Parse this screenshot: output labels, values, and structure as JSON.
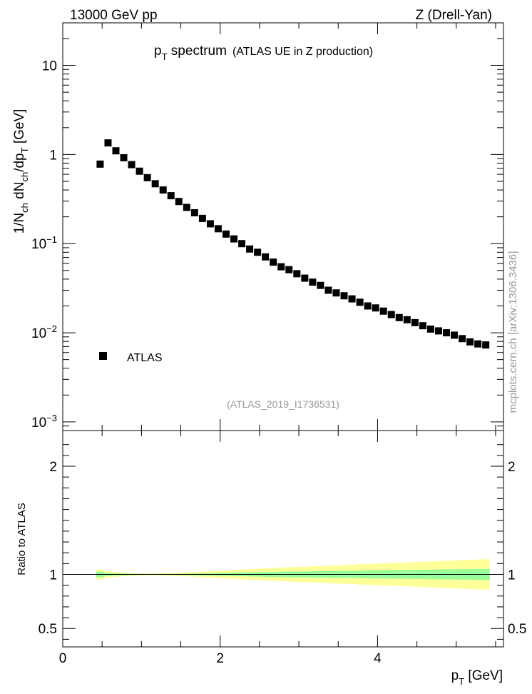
{
  "header": {
    "left": "13000 GeV pp",
    "right": "Z (Drell-Yan)"
  },
  "side_label": "mcplots.cern.ch [arXiv:1306.3436]",
  "chart_data": {
    "type": "scatter",
    "title_main": "p",
    "title_sub": "T",
    "title_rest": " spectrum",
    "title_note": "(ATLAS UE in Z production)",
    "analysis_id": "(ATLAS_2019_I1736531)",
    "legend": [
      {
        "name": "ATLAS",
        "marker": "square",
        "color": "#000000"
      }
    ],
    "xlabel": {
      "main": "p",
      "sub": "T",
      "unit": " [GeV]"
    },
    "ylabel_upper": "1/N_ch dN_ch/dp_T [GeV]",
    "ylabel_lower": "Ratio to ATLAS",
    "xlim": [
      0,
      5.6
    ],
    "ylim_upper": [
      0.0008,
      30
    ],
    "ylim_lower": [
      0.33,
      2.33
    ],
    "x_ticks": [
      {
        "v": 0,
        "label": "0"
      },
      {
        "v": 2,
        "label": "2"
      },
      {
        "v": 4,
        "label": "4"
      }
    ],
    "y_ticks_upper": [
      {
        "v": 10,
        "label": "10"
      },
      {
        "v": 1,
        "label": "1"
      },
      {
        "v": 0.1,
        "mant": "10",
        "exp": "−1"
      },
      {
        "v": 0.01,
        "mant": "10",
        "exp": "−2"
      },
      {
        "v": 0.001,
        "mant": "10",
        "exp": "−3"
      }
    ],
    "y_ticks_lower": [
      {
        "v": 2,
        "label": "2"
      },
      {
        "v": 1,
        "label": "1"
      },
      {
        "v": 0.5,
        "label": "0.5"
      }
    ],
    "series": [
      {
        "name": "ATLAS",
        "x": [
          0.475,
          0.575,
          0.675,
          0.775,
          0.875,
          0.975,
          1.075,
          1.175,
          1.275,
          1.375,
          1.475,
          1.575,
          1.675,
          1.775,
          1.875,
          1.975,
          2.075,
          2.175,
          2.275,
          2.375,
          2.475,
          2.575,
          2.675,
          2.775,
          2.875,
          2.975,
          3.075,
          3.175,
          3.275,
          3.375,
          3.475,
          3.575,
          3.675,
          3.775,
          3.875,
          3.975,
          4.075,
          4.175,
          4.275,
          4.375,
          4.475,
          4.575,
          4.675,
          4.775,
          4.875,
          4.975,
          5.075,
          5.175,
          5.275,
          5.375
        ],
        "values": [
          0.78,
          1.35,
          1.1,
          0.92,
          0.77,
          0.65,
          0.55,
          0.47,
          0.4,
          0.345,
          0.297,
          0.255,
          0.222,
          0.192,
          0.167,
          0.147,
          0.128,
          0.113,
          0.1,
          0.087,
          0.08,
          0.071,
          0.062,
          0.055,
          0.051,
          0.046,
          0.041,
          0.037,
          0.034,
          0.03,
          0.028,
          0.026,
          0.024,
          0.022,
          0.02,
          0.019,
          0.0175,
          0.016,
          0.0148,
          0.014,
          0.013,
          0.012,
          0.011,
          0.0105,
          0.01,
          0.0094,
          0.0086,
          0.0079,
          0.0075,
          0.0073
        ]
      }
    ],
    "ratio_bands": {
      "x_edges": [
        0.425,
        0.525,
        0.625,
        0.725,
        0.825,
        0.925,
        1.025,
        1.125,
        1.225,
        1.325,
        1.425,
        1.525,
        1.625,
        1.725,
        1.825,
        1.925,
        2.025,
        2.125,
        2.225,
        2.325,
        2.425,
        2.525,
        2.625,
        2.725,
        2.825,
        2.925,
        3.025,
        3.125,
        3.225,
        3.325,
        3.425,
        3.525,
        3.625,
        3.725,
        3.825,
        3.925,
        4.025,
        4.125,
        4.225,
        4.325,
        4.425,
        4.525,
        4.625,
        4.725,
        4.825,
        4.925,
        5.025,
        5.125,
        5.225,
        5.325,
        5.425
      ],
      "stat_halfwidth": [
        0.025,
        0.015,
        0.01,
        0.008,
        0.006,
        0.005,
        0.004,
        0.004,
        0.004,
        0.005,
        0.006,
        0.007,
        0.008,
        0.01,
        0.011,
        0.013,
        0.014,
        0.016,
        0.017,
        0.019,
        0.02,
        0.022,
        0.023,
        0.025,
        0.026,
        0.027,
        0.028,
        0.029,
        0.03,
        0.031,
        0.032,
        0.033,
        0.034,
        0.035,
        0.036,
        0.037,
        0.038,
        0.039,
        0.04,
        0.041,
        0.042,
        0.043,
        0.044,
        0.045,
        0.046,
        0.047,
        0.048,
        0.049,
        0.05,
        0.05
      ],
      "total_halfwidth": [
        0.045,
        0.03,
        0.022,
        0.016,
        0.012,
        0.01,
        0.009,
        0.009,
        0.01,
        0.012,
        0.015,
        0.018,
        0.021,
        0.025,
        0.029,
        0.033,
        0.037,
        0.041,
        0.045,
        0.048,
        0.052,
        0.056,
        0.06,
        0.063,
        0.066,
        0.069,
        0.072,
        0.075,
        0.078,
        0.081,
        0.084,
        0.087,
        0.09,
        0.093,
        0.096,
        0.099,
        0.102,
        0.105,
        0.108,
        0.111,
        0.114,
        0.117,
        0.12,
        0.123,
        0.126,
        0.129,
        0.132,
        0.135,
        0.138,
        0.14
      ],
      "stat_color": "#99ff99",
      "total_color": "#ffff99"
    }
  }
}
